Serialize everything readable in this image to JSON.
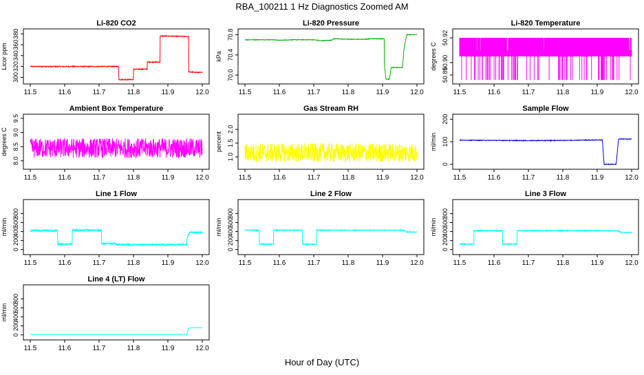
{
  "figure": {
    "title": "RBA_100211  1 Hz Diagnostics Zoomed AM",
    "xlabel": "Hour of Day (UTC)",
    "x_ticks": [
      "11.5",
      "11.6",
      "11.7",
      "11.8",
      "11.9",
      "12.0"
    ]
  },
  "chart_data": [
    {
      "type": "line",
      "title": "Li-820 CO2",
      "ylabel": "Licor ppm",
      "color": "#ff0000",
      "xlim": [
        11.5,
        12.0
      ],
      "ylim": [
        293,
        384
      ],
      "y_ticks": [
        "300",
        "320",
        "340",
        "360",
        "380"
      ],
      "noise": 0.8,
      "series": [
        {
          "x": [
            11.5,
            11.757,
            11.757,
            11.8,
            11.8,
            11.84,
            11.84,
            11.877,
            11.877,
            11.96,
            11.96,
            11.99,
            12.0
          ],
          "values": [
            320,
            320,
            296,
            296,
            315,
            315,
            328,
            328,
            376,
            375,
            310,
            309,
            309
          ]
        }
      ]
    },
    {
      "type": "line",
      "title": "Li-820 Pressure",
      "ylabel": "kPa",
      "color": "#00b000",
      "xlim": [
        11.5,
        12.0
      ],
      "ylim": [
        69.88,
        70.86
      ],
      "y_ticks": [
        "70.0",
        "70.4",
        "70.8"
      ],
      "noise": 0.006,
      "series": [
        {
          "x": [
            11.5,
            11.58,
            11.6,
            11.64,
            11.7,
            11.72,
            11.75,
            11.76,
            11.8,
            11.85,
            11.87,
            11.905,
            11.905,
            11.91,
            11.92,
            11.925,
            11.935,
            11.958,
            11.962,
            11.97,
            12.0
          ],
          "values": [
            70.7,
            70.7,
            70.69,
            70.7,
            70.7,
            70.68,
            70.69,
            70.72,
            70.71,
            70.71,
            70.72,
            70.72,
            70.25,
            69.92,
            69.92,
            70.15,
            70.15,
            70.15,
            70.5,
            70.8,
            70.8
          ]
        }
      ]
    },
    {
      "type": "line",
      "title": "Li-820 Temperature",
      "ylabel": "degrees C",
      "color": "#ff00ff",
      "xlim": [
        11.5,
        12.0
      ],
      "ylim": [
        50.885,
        50.925
      ],
      "y_ticks": [
        "50.89",
        "50.90",
        "50.92"
      ],
      "noise": 0,
      "series": [
        {
          "x": [
            11.5,
            12.0
          ],
          "values": [
            50.905,
            50.905
          ]
        }
      ]
    },
    {
      "type": "line",
      "title": "Ambient Box Temperature",
      "ylabel": "degrees C",
      "color": "#ff00ff",
      "xlim": [
        11.5,
        12.0
      ],
      "ylim": [
        7.8,
        9.55
      ],
      "y_ticks": [
        "8.0",
        "8.5",
        "9.0",
        "9.5"
      ],
      "noise": 0.35,
      "series": [
        {
          "x": [
            11.5,
            12.0
          ],
          "values": [
            8.45,
            8.45
          ]
        }
      ]
    },
    {
      "type": "line",
      "title": "Gas Stream RH",
      "ylabel": "percent",
      "color": "#ffff00",
      "xlim": [
        11.5,
        12.0
      ],
      "ylim": [
        0.65,
        2.45
      ],
      "y_ticks": [
        "1.0",
        "1.5",
        "2.0"
      ],
      "noise": 0.35,
      "series": [
        {
          "x": [
            11.5,
            12.0
          ],
          "values": [
            1.15,
            1.15
          ]
        }
      ]
    },
    {
      "type": "line",
      "title": "Sample Flow",
      "ylabel": "ml/min",
      "color": "#0000cc",
      "xlim": [
        11.5,
        12.0
      ],
      "ylim": [
        -10,
        210
      ],
      "y_ticks": [
        "0",
        "100",
        "200"
      ],
      "noise": 1.5,
      "series": [
        {
          "x": [
            11.5,
            11.6,
            11.7,
            11.8,
            11.9,
            11.915,
            11.92,
            11.955,
            11.962,
            12.0
          ],
          "values": [
            107,
            106,
            105,
            106,
            108,
            108,
            0,
            0,
            112,
            112
          ]
        }
      ]
    },
    {
      "type": "line",
      "title": "Line 1 Flow",
      "ylabel": "ml/min",
      "color": "#00ffff",
      "xlim": [
        11.5,
        12.0
      ],
      "ylim": [
        -50,
        1050
      ],
      "y_ticks": [
        "0",
        "200",
        "400",
        "600",
        "800"
      ],
      "noise": 20,
      "series": [
        {
          "x": [
            11.5,
            11.58,
            11.58,
            11.622,
            11.622,
            11.707,
            11.707,
            11.75,
            11.75,
            11.955,
            11.955,
            11.963,
            12.0
          ],
          "values": [
            420,
            420,
            120,
            120,
            430,
            430,
            130,
            130,
            110,
            110,
            250,
            380,
            380
          ]
        }
      ]
    },
    {
      "type": "line",
      "title": "Line 2 Flow",
      "ylabel": "ml/min",
      "color": "#00ffff",
      "xlim": [
        11.5,
        12.0
      ],
      "ylim": [
        -50,
        1050
      ],
      "y_ticks": [
        "0",
        "200",
        "400",
        "600",
        "800"
      ],
      "noise": 10,
      "series": [
        {
          "x": [
            11.5,
            11.542,
            11.542,
            11.583,
            11.583,
            11.667,
            11.667,
            11.708,
            11.708,
            11.96,
            11.97,
            12.0
          ],
          "values": [
            430,
            430,
            120,
            120,
            430,
            430,
            120,
            120,
            430,
            430,
            390,
            390
          ]
        }
      ]
    },
    {
      "type": "line",
      "title": "Line 3 Flow",
      "ylabel": "ml/min",
      "color": "#00ffff",
      "xlim": [
        11.5,
        12.0
      ],
      "ylim": [
        -50,
        1050
      ],
      "y_ticks": [
        "0",
        "200",
        "400",
        "600",
        "800"
      ],
      "noise": 10,
      "series": [
        {
          "x": [
            11.5,
            11.542,
            11.542,
            11.625,
            11.625,
            11.667,
            11.667,
            11.96,
            11.97,
            12.0
          ],
          "values": [
            120,
            120,
            420,
            420,
            120,
            120,
            420,
            420,
            380,
            380
          ]
        }
      ]
    },
    {
      "type": "line",
      "title": "Line 4 (LT) Flow",
      "ylabel": "ml/min",
      "color": "#00ffff",
      "xlim": [
        11.5,
        12.0
      ],
      "ylim": [
        -50,
        1050
      ],
      "y_ticks": [
        "0",
        "200",
        "400",
        "600",
        "800"
      ],
      "noise": 1,
      "series": [
        {
          "x": [
            11.5,
            11.955,
            11.96,
            11.97,
            12.0
          ],
          "values": [
            10,
            10,
            150,
            160,
            160
          ]
        }
      ]
    }
  ]
}
